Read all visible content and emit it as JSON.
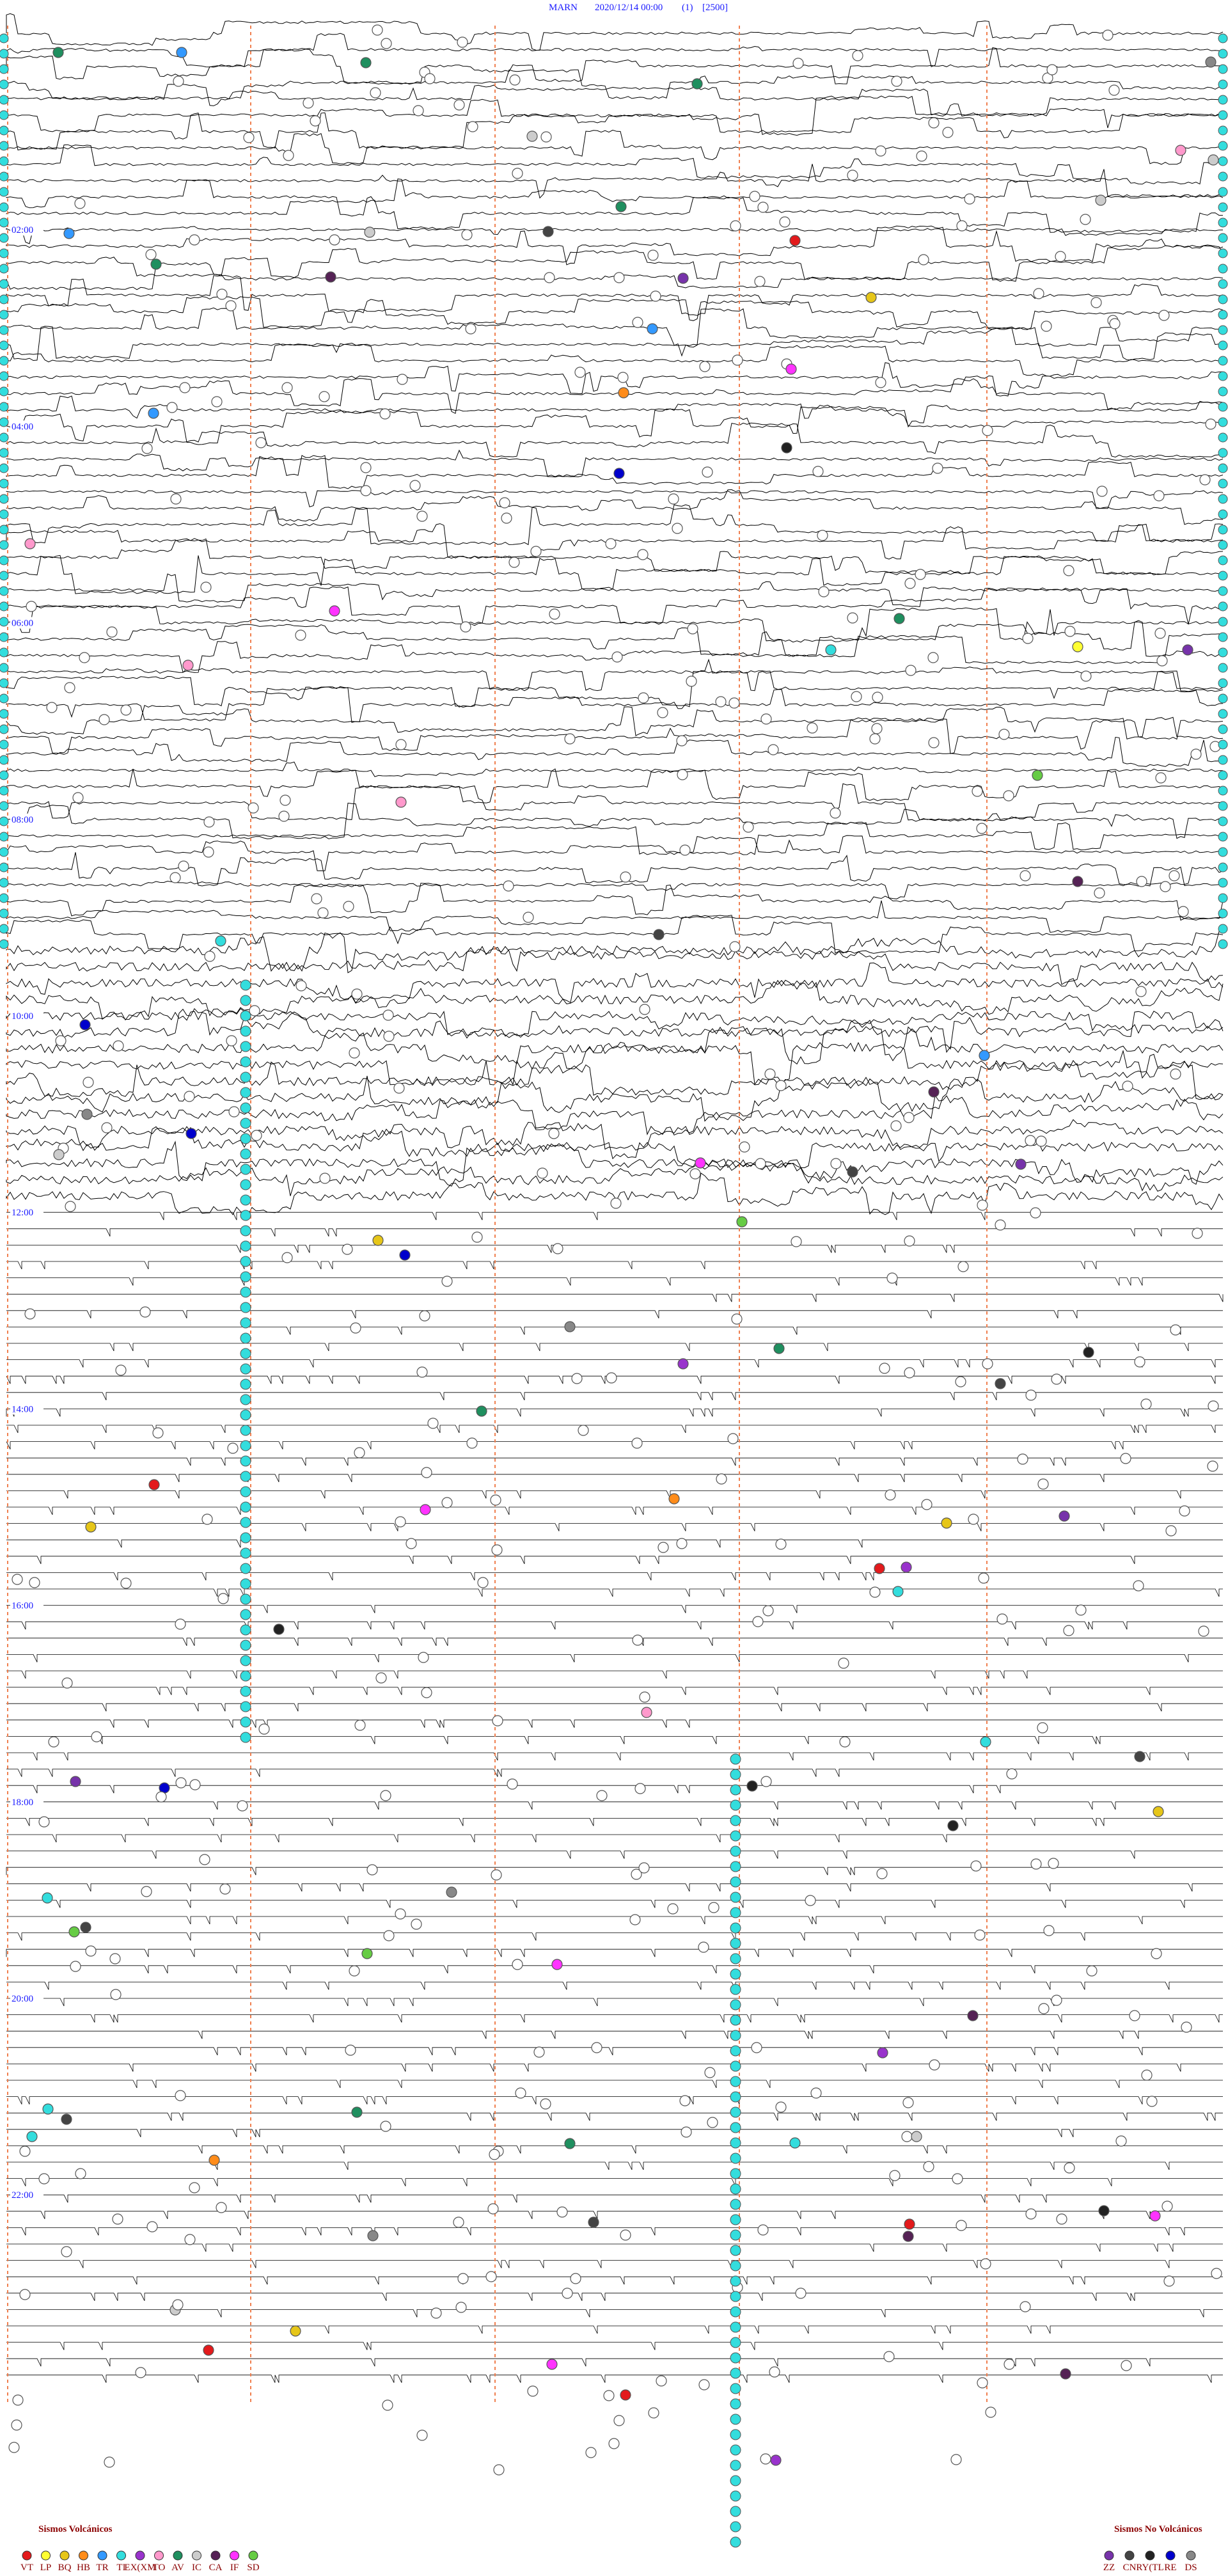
{
  "header": {
    "station": "MARN",
    "datetime": "2020/12/14 00:00",
    "channel": "(1)",
    "gain": "[2500]"
  },
  "time_labels": [
    "02:00",
    "04:00",
    "06:00",
    "08:00",
    "10:00",
    "12:00",
    "14:00",
    "16:00",
    "18:00",
    "20:00",
    "22:00"
  ],
  "legend": {
    "volcanic_title": "Sismos Volcánicos",
    "volcanic": [
      {
        "code": "VT",
        "color": "#e31a1c"
      },
      {
        "code": "LP",
        "color": "#ffff33"
      },
      {
        "code": "BQ",
        "color": "#e6c619"
      },
      {
        "code": "HB",
        "color": "#ff8c1a"
      },
      {
        "code": "TR",
        "color": "#3399ff"
      },
      {
        "code": "TI",
        "color": "#33dddd"
      },
      {
        "code": "EX(XM",
        "color": "#9933cc"
      },
      {
        "code": "TO",
        "color": "#ff99cc"
      },
      {
        "code": "AV",
        "color": "#1f8f5f"
      },
      {
        "code": "IC",
        "color": "#cccccc"
      },
      {
        "code": "CA",
        "color": "#552255"
      },
      {
        "code": "IF",
        "color": "#ff33ff"
      },
      {
        "code": "SD",
        "color": "#66cc44"
      }
    ],
    "nonvolcanic_title": "Sismos No Volcánicos",
    "nonvolcanic": [
      {
        "code": "ZZ",
        "color": "#7733aa"
      },
      {
        "code": "CN",
        "color": "#444444"
      },
      {
        "code": "RY(TL",
        "color": "#222222"
      },
      {
        "code": "RE",
        "color": "#0000cc"
      },
      {
        "code": "DS",
        "color": "#888888"
      }
    ]
  }
}
